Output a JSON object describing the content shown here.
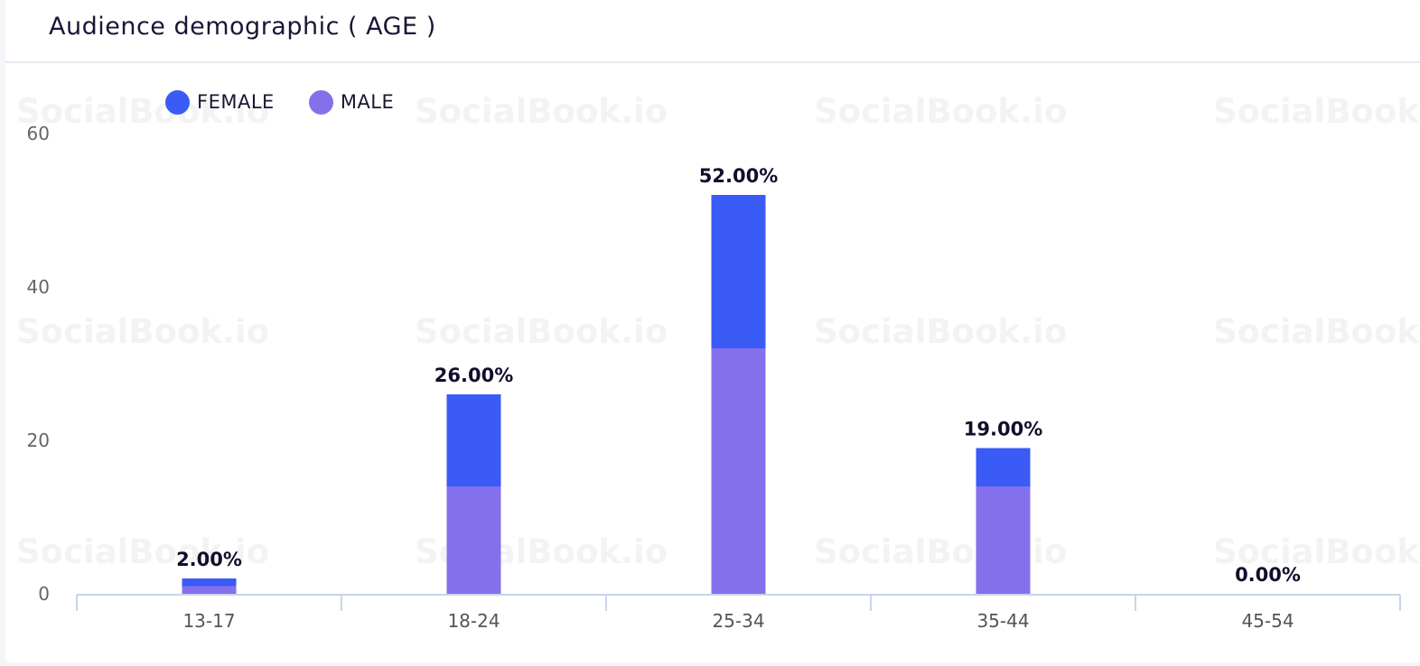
{
  "card": {
    "title": "Audience demographic ( AGE )"
  },
  "watermark_text": "SocialBook.io",
  "colors": {
    "female": "#3a5bf5",
    "male": "#8570ec",
    "axis": "#c9d3ea",
    "title": "#1b1535"
  },
  "legend": [
    {
      "label": "FEMALE",
      "color": "#3a5bf5"
    },
    {
      "label": "MALE",
      "color": "#8570ec"
    }
  ],
  "chart_data": {
    "type": "bar",
    "stacked": true,
    "categories": [
      "13-17",
      "18-24",
      "25-34",
      "35-44",
      "45-54"
    ],
    "series": [
      {
        "name": "MALE",
        "values": [
          1,
          14,
          32,
          14,
          0
        ]
      },
      {
        "name": "FEMALE",
        "values": [
          1,
          12,
          20,
          5,
          0
        ]
      }
    ],
    "totals_labels": [
      "2.00%",
      "26.00%",
      "52.00%",
      "19.00%",
      "0.00%"
    ],
    "ylim": [
      0,
      60
    ],
    "yticks": [
      "0",
      "20",
      "40",
      "60"
    ],
    "grid": false,
    "legend_position": "top-left",
    "xlabel": "",
    "ylabel": ""
  }
}
